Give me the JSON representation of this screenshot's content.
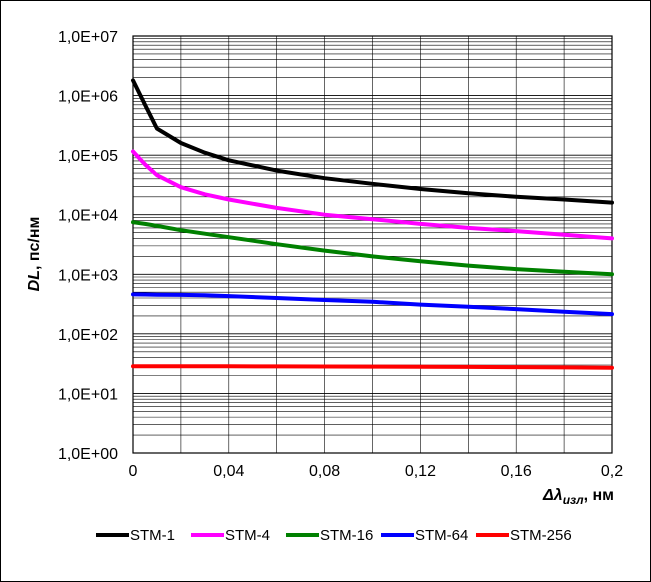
{
  "chart_data": {
    "type": "line",
    "y_scale": "log",
    "ylim": [
      1,
      10000000
    ],
    "xlim": [
      0,
      0.2
    ],
    "grid": true,
    "legend_position": "bottom",
    "ylabel": {
      "main": "DL",
      "rest": ", пс/нм"
    },
    "xlabel": {
      "main": "Δλ",
      "sub": "изл",
      "rest": ", нм"
    },
    "y_tick_labels": [
      "1,0E+00",
      "1,0E+01",
      "1,0E+02",
      "1,0E+03",
      "1,0E+04",
      "1,0E+05",
      "1,0E+06",
      "1,0E+07"
    ],
    "y_tick_values": [
      1,
      10,
      100,
      1000,
      10000,
      100000,
      1000000,
      10000000
    ],
    "x_tick_labels": [
      "0",
      "0,04",
      "0,08",
      "0,12",
      "0,16",
      "0,2"
    ],
    "x_tick_values": [
      0,
      0.04,
      0.08,
      0.12,
      0.16,
      0.2
    ],
    "x": [
      0,
      0.005,
      0.01,
      0.02,
      0.03,
      0.04,
      0.06,
      0.08,
      0.1,
      0.12,
      0.14,
      0.16,
      0.18,
      0.2
    ],
    "series": [
      {
        "name": "STM-1",
        "color": "#000000",
        "values": [
          1800000,
          700000,
          280000,
          160000,
          110000,
          82000,
          55000,
          41000,
          33000,
          27000,
          23000,
          20000,
          18000,
          16000
        ]
      },
      {
        "name": "STM-4",
        "color": "#ff00ff",
        "values": [
          115000,
          70000,
          46000,
          29000,
          22000,
          18000,
          13000,
          10000,
          8400,
          7000,
          6000,
          5300,
          4600,
          4000
        ]
      },
      {
        "name": "STM-16",
        "color": "#008000",
        "values": [
          7500,
          7000,
          6500,
          5500,
          4800,
          4200,
          3200,
          2500,
          2000,
          1650,
          1400,
          1220,
          1100,
          1000
        ]
      },
      {
        "name": "STM-64",
        "color": "#0000ff",
        "values": [
          460,
          458,
          455,
          450,
          445,
          430,
          400,
          370,
          345,
          310,
          285,
          260,
          235,
          215
        ]
      },
      {
        "name": "STM-256",
        "color": "#ff0000",
        "values": [
          28.5,
          28.5,
          28.5,
          28.5,
          28.5,
          28.5,
          28.4,
          28.3,
          28.2,
          28.1,
          27.9,
          27.7,
          27.4,
          27
        ]
      }
    ]
  }
}
